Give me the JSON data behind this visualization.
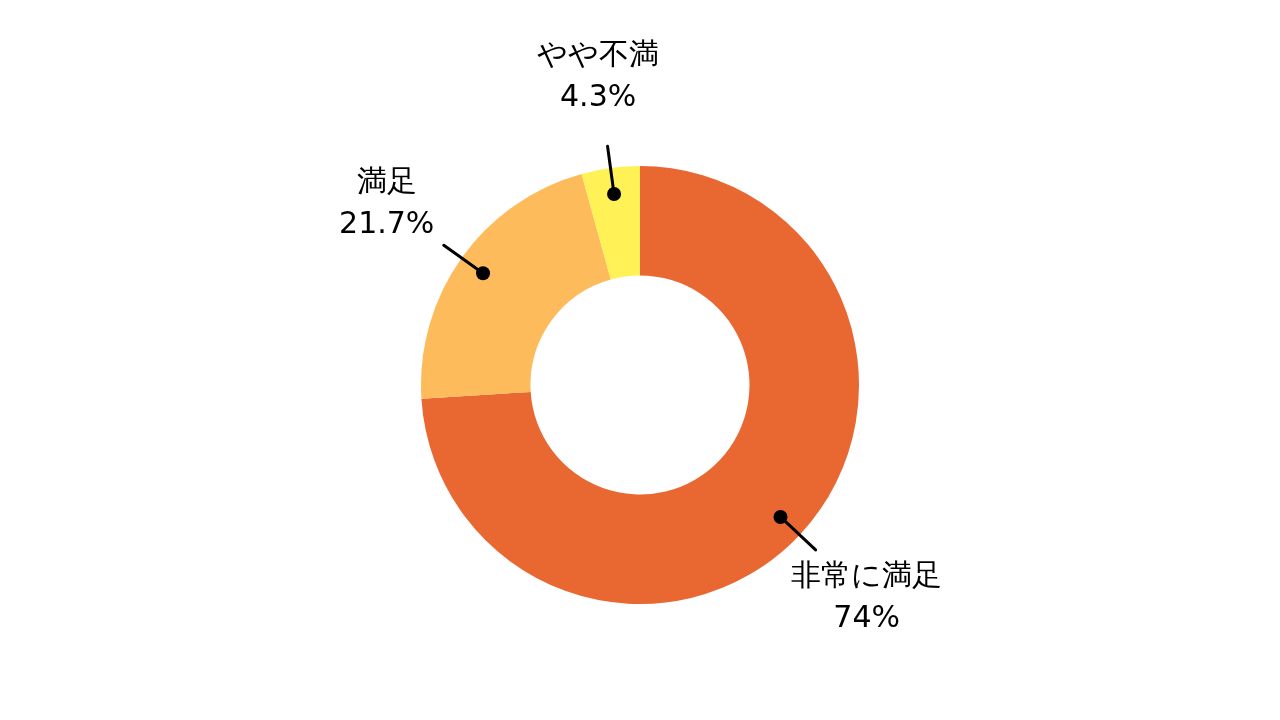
{
  "chart_data": {
    "type": "donut",
    "categories": [
      "非常に満足",
      "満足",
      "やや不満"
    ],
    "values": [
      74,
      21.7,
      4.3
    ],
    "colors": [
      "#e96731",
      "#fdbb5b",
      "#fff156"
    ],
    "value_labels": [
      "74%",
      "21.7%",
      "4.3%"
    ]
  }
}
